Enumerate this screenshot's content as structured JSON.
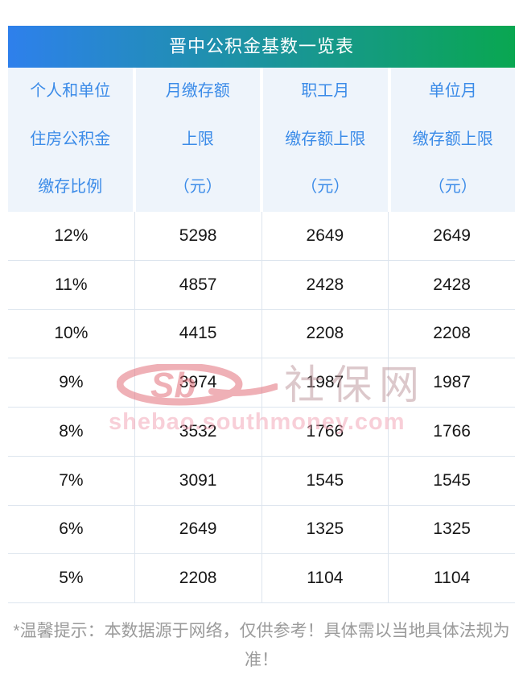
{
  "theme": {
    "title_gradient_from": "#2e80ec",
    "title_gradient_to": "#09a751",
    "title_text_color": "#ffffff",
    "header_bg": "#eef4fb",
    "header_text": "#3b8be8",
    "row_text": "#161616",
    "separator": "#dde5ee",
    "footer_text": "#9b9b9b",
    "watermark_red": "#e06470",
    "watermark_name": "#bb9298",
    "watermark_url": "#f2a0b2"
  },
  "table": {
    "title": "晋中公积金基数一览表",
    "header": {
      "columns": [
        {
          "lines": [
            "个人和单位",
            "住房公积金",
            "缴存比例"
          ]
        },
        {
          "lines": [
            "月缴存额",
            "上限",
            "（元）"
          ]
        },
        {
          "lines": [
            "职工月",
            "缴存额上限",
            "（元）"
          ]
        },
        {
          "lines": [
            "单位月",
            "缴存额上限",
            "（元）"
          ]
        }
      ]
    },
    "rows": [
      [
        "12%",
        "5298",
        "2649",
        "2649"
      ],
      [
        "11%",
        "4857",
        "2428",
        "2428"
      ],
      [
        "10%",
        "4415",
        "2208",
        "2208"
      ],
      [
        "9%",
        "3974",
        "1987",
        "1987"
      ],
      [
        "8%",
        "3532",
        "1766",
        "1766"
      ],
      [
        "7%",
        "3091",
        "1545",
        "1545"
      ],
      [
        "6%",
        "2649",
        "1325",
        "1325"
      ],
      [
        "5%",
        "2208",
        "1104",
        "1104"
      ]
    ]
  },
  "watermark": {
    "logo_text": "Sb",
    "site_name": "社保网",
    "site_url": "shebao.southmoney.com"
  },
  "footer": {
    "note": "*温馨提示：本数据源于网络，仅供参考！具体需以当地具体法规为准！"
  },
  "chart_data": {
    "type": "table",
    "title": "晋中公积金基数一览表",
    "columns": [
      "个人和单位住房公积金缴存比例",
      "月缴存额上限（元）",
      "职工月缴存额上限（元）",
      "单位月缴存额上限（元）"
    ],
    "rows": [
      [
        "12%",
        5298,
        2649,
        2649
      ],
      [
        "11%",
        4857,
        2428,
        2428
      ],
      [
        "10%",
        4415,
        2208,
        2208
      ],
      [
        "9%",
        3974,
        1987,
        1987
      ],
      [
        "8%",
        3532,
        1766,
        1766
      ],
      [
        "7%",
        3091,
        1545,
        1545
      ],
      [
        "6%",
        2649,
        1325,
        1325
      ],
      [
        "5%",
        2208,
        1104,
        1104
      ]
    ],
    "footnote": "*温馨提示：本数据源于网络，仅供参考！具体需以当地具体法规为准！"
  }
}
